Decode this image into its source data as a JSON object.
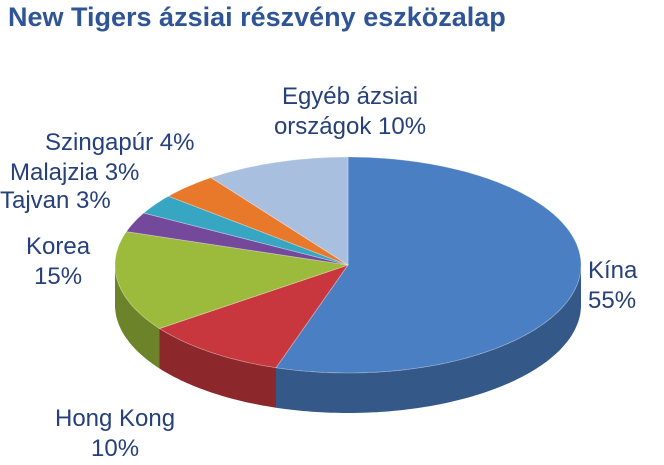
{
  "chart_data": {
    "type": "pie3d",
    "title": "New Tigers ázsiai részvény eszközalap",
    "categories": [
      "Kína",
      "Hong Kong",
      "Korea",
      "Tajvan",
      "Malajzia",
      "Szingapúr",
      "Egyéb ázsiai országok"
    ],
    "values": [
      55,
      10,
      15,
      3,
      3,
      4,
      10
    ],
    "value_labels": [
      "55%",
      "10%",
      "15%",
      "3%",
      "3%",
      "4%",
      "10%"
    ],
    "colors": [
      "#4a7fc4",
      "#c8373e",
      "#9cbb3c",
      "#74499c",
      "#37a6c2",
      "#e8782a",
      "#a9bfe0"
    ]
  }
}
